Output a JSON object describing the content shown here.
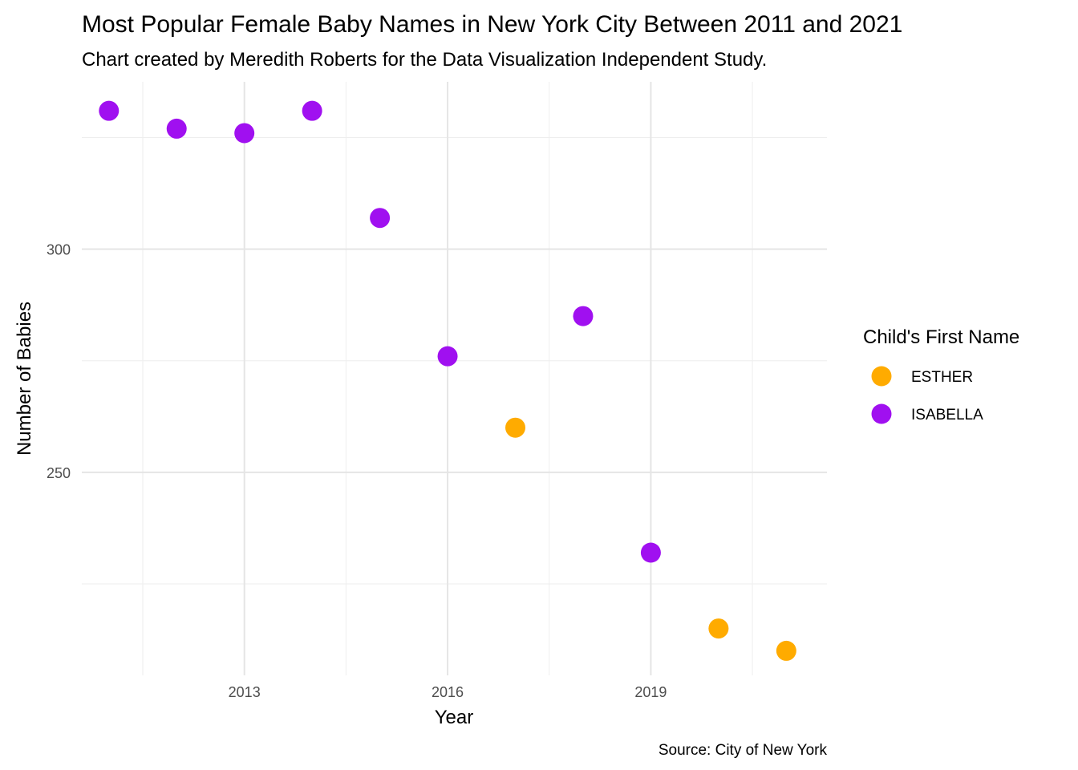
{
  "chart_data": {
    "type": "scatter",
    "title": "Most Popular Female Baby Names in New York City Between 2011 and 2021",
    "subtitle": "Chart created by Meredith Roberts for the Data Visualization Independent Study.",
    "caption": "Source: City of New York",
    "xlabel": "Year",
    "ylabel": "Number of Babies",
    "xlim": [
      2010.6,
      2021.6
    ],
    "ylim": [
      204.5,
      337.5
    ],
    "x_ticks": [
      2013,
      2016,
      2019
    ],
    "y_ticks": [
      250,
      300
    ],
    "grid": true,
    "legend": {
      "title": "Child's First Name",
      "position": "right"
    },
    "series": [
      {
        "name": "ESTHER",
        "color": "#ffab00",
        "points": [
          {
            "x": 2017,
            "y": 260
          },
          {
            "x": 2020,
            "y": 215
          },
          {
            "x": 2021,
            "y": 210
          }
        ]
      },
      {
        "name": "ISABELLA",
        "color": "#a010f0",
        "points": [
          {
            "x": 2011,
            "y": 331
          },
          {
            "x": 2012,
            "y": 327
          },
          {
            "x": 2013,
            "y": 326
          },
          {
            "x": 2014,
            "y": 331
          },
          {
            "x": 2015,
            "y": 307
          },
          {
            "x": 2016,
            "y": 276
          },
          {
            "x": 2018,
            "y": 285
          },
          {
            "x": 2019,
            "y": 232
          }
        ]
      }
    ]
  }
}
